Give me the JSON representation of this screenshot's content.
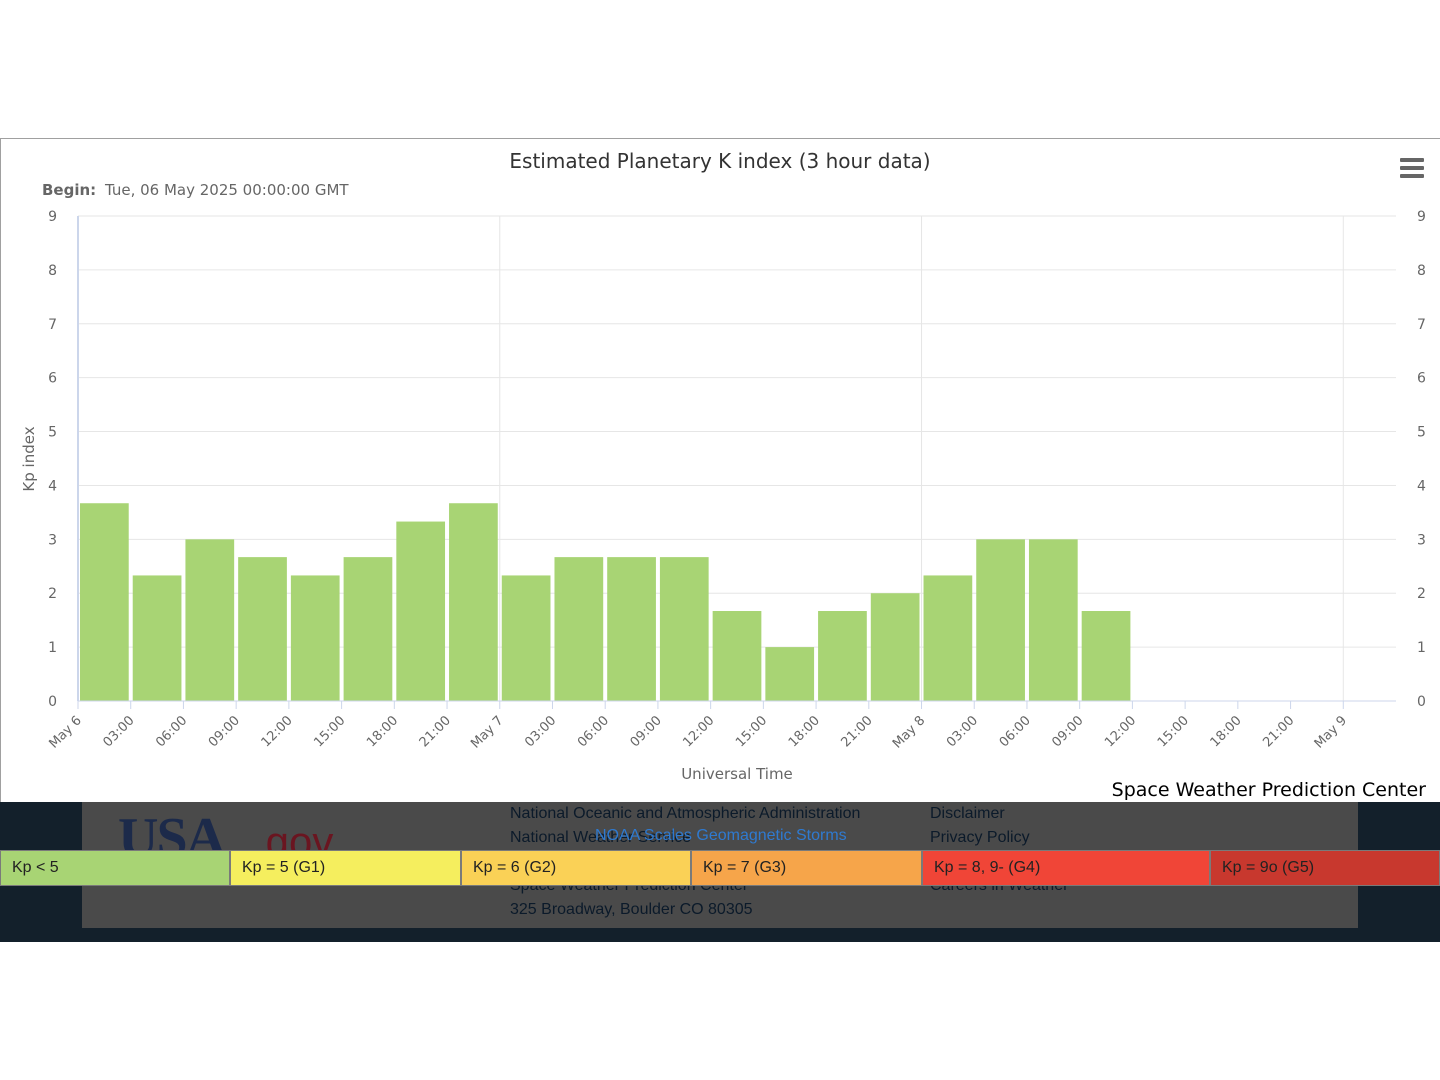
{
  "chart_data": {
    "type": "bar",
    "title": "Estimated Planetary K index (3 hour data)",
    "subtitle_label": "Begin:",
    "subtitle_value": "Tue, 06 May 2025 00:00:00 GMT",
    "xlabel": "Universal Time",
    "ylabel": "Kp index",
    "ylim": [
      0,
      9
    ],
    "yticks": [
      "0",
      "1",
      "2",
      "3",
      "4",
      "5",
      "6",
      "7",
      "8",
      "9"
    ],
    "xticks": [
      "May 6",
      "03:00",
      "06:00",
      "09:00",
      "12:00",
      "15:00",
      "18:00",
      "21:00",
      "May 7",
      "03:00",
      "06:00",
      "09:00",
      "12:00",
      "15:00",
      "18:00",
      "21:00",
      "May 8",
      "03:00",
      "06:00",
      "09:00",
      "12:00",
      "15:00",
      "18:00",
      "21:00",
      "May 9"
    ],
    "values": [
      3.67,
      2.33,
      3.0,
      2.67,
      2.33,
      2.67,
      3.33,
      3.67,
      2.33,
      2.67,
      2.67,
      2.67,
      1.67,
      1.0,
      1.67,
      2.0,
      2.33,
      3.0,
      3.0,
      1.67
    ],
    "bar_color": "#a8d474",
    "grid": true,
    "credit": "Space Weather Prediction Center"
  },
  "scale": {
    "title": "NOAA Scales Geomagnetic Storms",
    "items": [
      {
        "label": "Kp < 5",
        "color": "#a8d474"
      },
      {
        "label": "Kp = 5 (G1)",
        "color": "#f5ee5e"
      },
      {
        "label": "Kp = 6 (G2)",
        "color": "#fad156"
      },
      {
        "label": "Kp = 7 (G3)",
        "color": "#f6a54a"
      },
      {
        "label": "Kp = 8, 9- (G4)",
        "color": "#f04537"
      },
      {
        "label": "Kp = 9o (G5)",
        "color": "#c8382e"
      }
    ]
  },
  "footer": {
    "line1": "National Oceanic and Atmospheric Administration",
    "line2": "National Weather Service",
    "line3": "Space Weather Prediction Center",
    "line4": "325 Broadway, Boulder CO 80305",
    "links": [
      "Disclaimer",
      "Privacy Policy",
      "Careers in Weather"
    ],
    "logo_usa": "USA",
    "logo_gov": ".gov"
  }
}
